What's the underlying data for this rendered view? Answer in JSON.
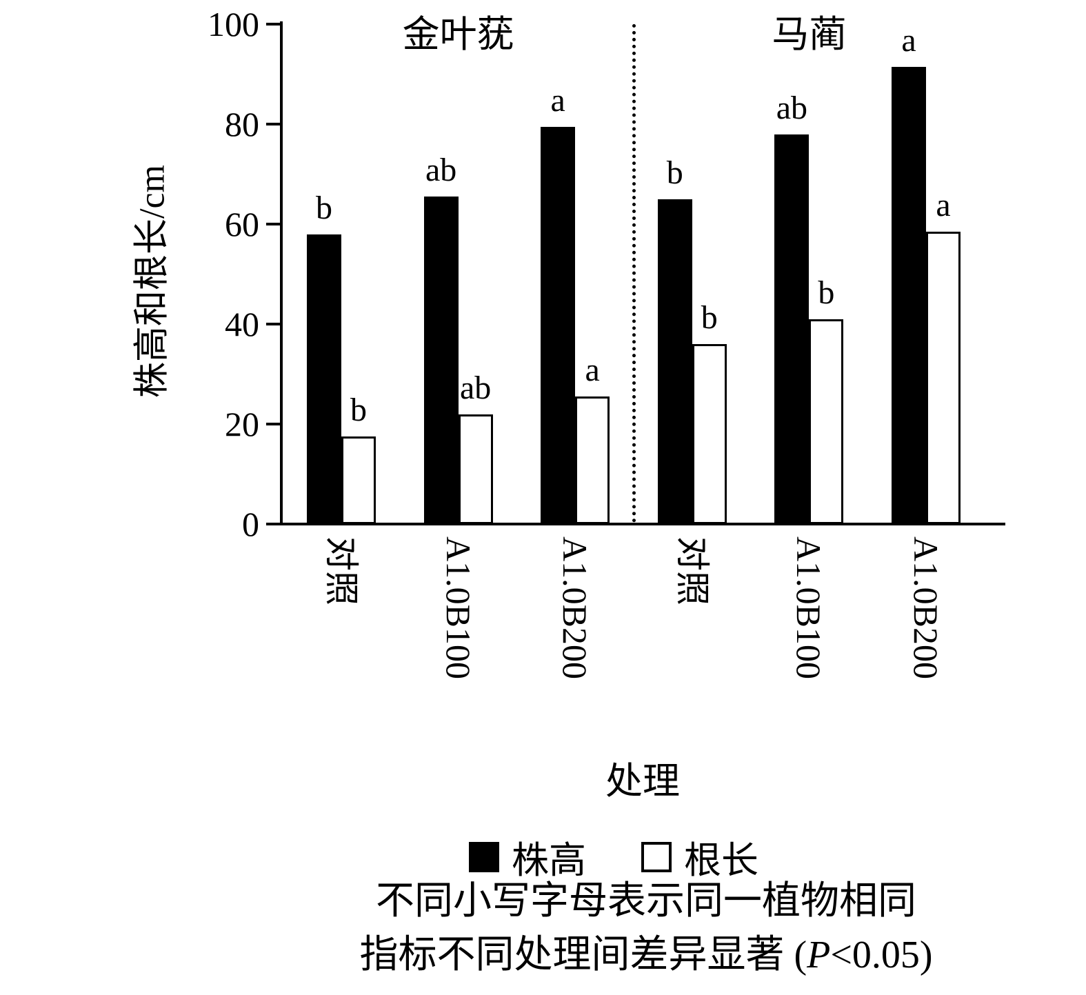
{
  "chart_data": {
    "type": "bar",
    "title": "",
    "ylabel": "株高和根长/cm",
    "xlabel": "处理",
    "ylim": [
      0,
      100
    ],
    "yticks": [
      0,
      20,
      40,
      60,
      80,
      100
    ],
    "grid": false,
    "legend_position": "bottom",
    "groups": [
      {
        "name": "金叶莸",
        "categories": [
          "对照",
          "A1.0B100",
          "A1.0B200"
        ],
        "series": [
          {
            "name": "株高",
            "fill": "#000000",
            "values": [
              58,
              65.5,
              79.5
            ],
            "letters": [
              "b",
              "ab",
              "a"
            ]
          },
          {
            "name": "根长",
            "fill": "#ffffff",
            "values": [
              17.5,
              22,
              25.5
            ],
            "letters": [
              "b",
              "ab",
              "a"
            ]
          }
        ]
      },
      {
        "name": "马蔺",
        "categories": [
          "对照",
          "A1.0B100",
          "A1.0B200"
        ],
        "series": [
          {
            "name": "株高",
            "fill": "#000000",
            "values": [
              65,
              78,
              91.5
            ],
            "letters": [
              "b",
              "ab",
              "a"
            ]
          },
          {
            "name": "根长",
            "fill": "#ffffff",
            "values": [
              36,
              41,
              58.5
            ],
            "letters": [
              "b",
              "b",
              "a"
            ]
          }
        ]
      }
    ],
    "legend": [
      {
        "label": "株高",
        "fill": "#000000"
      },
      {
        "label": "根长",
        "fill": "#ffffff"
      }
    ],
    "caption": {
      "line1": "不同小写字母表示同一植物相同",
      "line2_pre": "指标不同处理间差异显著 (",
      "line2_italic": "P",
      "line2_post": "<0.05)"
    }
  }
}
